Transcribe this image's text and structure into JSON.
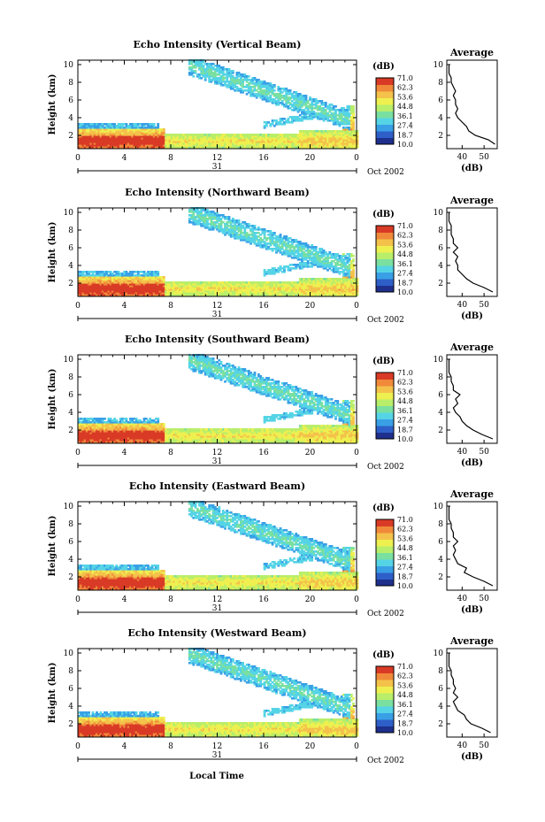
{
  "footer_label": "Local Time",
  "colorbar": {
    "unit": "(dB)",
    "ticks": [
      "71.0",
      "62.3",
      "53.6",
      "44.8",
      "36.1",
      "27.4",
      "18.7",
      "10.0"
    ],
    "colors": [
      "#1e2f8c",
      "#2e5fc8",
      "#39a0e6",
      "#55d4e6",
      "#7ae0a0",
      "#b8ee6a",
      "#eef050",
      "#f4c24a",
      "#f08a3a",
      "#d93a26"
    ]
  },
  "chart_data": [
    {
      "type": "heatmap",
      "title": "Echo Intensity (Vertical Beam)",
      "ylabel": "Height (km)",
      "ylim": [
        0.5,
        10.5
      ],
      "yticks": [
        "2",
        "4",
        "6",
        "8",
        "10"
      ],
      "xlim": [
        0,
        24
      ],
      "xticks": [
        "0",
        "4",
        "8",
        "12",
        "16",
        "20",
        "0"
      ],
      "day_label": "31",
      "date_label": "Oct 2002",
      "colorbar_range_dB": [
        10.0,
        71.0
      ],
      "average_profile": {
        "title": "Average",
        "xlabel": "(dB)",
        "xlim": [
          33,
          56
        ],
        "xticks": [
          "40",
          "50"
        ],
        "yticks": [
          "2",
          "4",
          "6",
          "8",
          "10"
        ],
        "height_km": [
          1.0,
          1.5,
          2.0,
          2.5,
          3.0,
          3.5,
          4.0,
          4.5,
          5.0,
          5.5,
          6.0,
          6.5,
          7.0,
          7.5,
          8.0,
          8.5,
          9.0,
          9.5,
          10.0
        ],
        "values_dB": [
          55,
          52,
          46,
          43,
          42,
          40,
          38,
          37,
          38,
          37,
          37,
          36,
          37,
          36,
          35,
          35,
          34,
          34,
          34
        ]
      }
    },
    {
      "type": "heatmap",
      "title": "Echo Intensity (Northward Beam)",
      "ylabel": "Height (km)",
      "ylim": [
        0.5,
        10.5
      ],
      "yticks": [
        "2",
        "4",
        "6",
        "8",
        "10"
      ],
      "xlim": [
        0,
        24
      ],
      "xticks": [
        "0",
        "4",
        "8",
        "12",
        "16",
        "20",
        "0"
      ],
      "day_label": "31",
      "date_label": "Oct 2002",
      "colorbar_range_dB": [
        10.0,
        71.0
      ],
      "average_profile": {
        "title": "Average",
        "xlabel": "(dB)",
        "xlim": [
          33,
          56
        ],
        "xticks": [
          "40",
          "50"
        ],
        "yticks": [
          "2",
          "4",
          "6",
          "8",
          "10"
        ],
        "height_km": [
          1.0,
          1.5,
          2.0,
          2.5,
          3.0,
          3.5,
          4.0,
          4.5,
          5.0,
          5.5,
          6.0,
          6.5,
          7.0,
          7.5,
          8.0,
          8.5,
          9.0,
          9.5,
          10.0
        ],
        "values_dB": [
          54,
          50,
          45,
          42,
          40,
          38,
          38,
          37,
          38,
          36,
          38,
          36,
          36,
          35,
          35,
          35,
          34,
          34,
          34
        ]
      }
    },
    {
      "type": "heatmap",
      "title": "Echo Intensity (Southward Beam)",
      "ylabel": "Height (km)",
      "ylim": [
        0.5,
        10.5
      ],
      "yticks": [
        "2",
        "4",
        "6",
        "8",
        "10"
      ],
      "xlim": [
        0,
        24
      ],
      "xticks": [
        "0",
        "4",
        "8",
        "12",
        "16",
        "20",
        "0"
      ],
      "day_label": "31",
      "date_label": "Oct 2002",
      "colorbar_range_dB": [
        10.0,
        71.0
      ],
      "average_profile": {
        "title": "Average",
        "xlabel": "(dB)",
        "xlim": [
          33,
          56
        ],
        "xticks": [
          "40",
          "50"
        ],
        "yticks": [
          "2",
          "4",
          "6",
          "8",
          "10"
        ],
        "height_km": [
          1.0,
          1.5,
          2.0,
          2.5,
          3.0,
          3.5,
          4.0,
          4.5,
          5.0,
          5.5,
          6.0,
          6.5,
          7.0,
          7.5,
          8.0,
          8.5,
          9.0,
          9.5,
          10.0
        ],
        "values_dB": [
          54,
          49,
          45,
          42,
          40,
          39,
          37,
          36,
          38,
          37,
          39,
          36,
          36,
          35,
          35,
          34,
          34,
          34,
          34
        ]
      }
    },
    {
      "type": "heatmap",
      "title": "Echo Intensity (Eastward Beam)",
      "ylabel": "Height (km)",
      "ylim": [
        0.5,
        10.5
      ],
      "yticks": [
        "2",
        "4",
        "6",
        "8",
        "10"
      ],
      "xlim": [
        0,
        24
      ],
      "xticks": [
        "0",
        "4",
        "8",
        "12",
        "16",
        "20",
        "0"
      ],
      "day_label": "31",
      "date_label": "Oct 2002",
      "colorbar_range_dB": [
        10.0,
        71.0
      ],
      "average_profile": {
        "title": "Average",
        "xlabel": "(dB)",
        "xlim": [
          33,
          56
        ],
        "xticks": [
          "40",
          "50"
        ],
        "yticks": [
          "2",
          "4",
          "6",
          "8",
          "10"
        ],
        "height_km": [
          1.0,
          1.5,
          2.0,
          2.5,
          3.0,
          3.5,
          4.0,
          4.5,
          5.0,
          5.5,
          6.0,
          6.5,
          7.0,
          7.5,
          8.0,
          8.5,
          9.0,
          9.5,
          10.0
        ],
        "values_dB": [
          54,
          50,
          45,
          41,
          42,
          38,
          37,
          36,
          37,
          36,
          38,
          36,
          36,
          35,
          35,
          34,
          34,
          34,
          34
        ]
      }
    },
    {
      "type": "heatmap",
      "title": "Echo Intensity (Westward Beam)",
      "ylabel": "Height (km)",
      "ylim": [
        0.5,
        10.5
      ],
      "yticks": [
        "2",
        "4",
        "6",
        "8",
        "10"
      ],
      "xlim": [
        0,
        24
      ],
      "xticks": [
        "0",
        "4",
        "8",
        "12",
        "16",
        "20",
        "0"
      ],
      "day_label": "31",
      "date_label": "Oct 2002",
      "colorbar_range_dB": [
        10.0,
        71.0
      ],
      "average_profile": {
        "title": "Average",
        "xlabel": "(dB)",
        "xlim": [
          33,
          56
        ],
        "xticks": [
          "40",
          "50"
        ],
        "yticks": [
          "2",
          "4",
          "6",
          "8",
          "10"
        ],
        "height_km": [
          1.0,
          1.5,
          2.0,
          2.5,
          3.0,
          3.5,
          4.0,
          4.5,
          5.0,
          5.5,
          6.0,
          6.5,
          7.0,
          7.5,
          8.0,
          8.5,
          9.0,
          9.5,
          10.0
        ],
        "values_dB": [
          53,
          49,
          44,
          42,
          41,
          38,
          37,
          36,
          38,
          36,
          37,
          36,
          36,
          35,
          35,
          34,
          34,
          34,
          34
        ]
      }
    }
  ]
}
